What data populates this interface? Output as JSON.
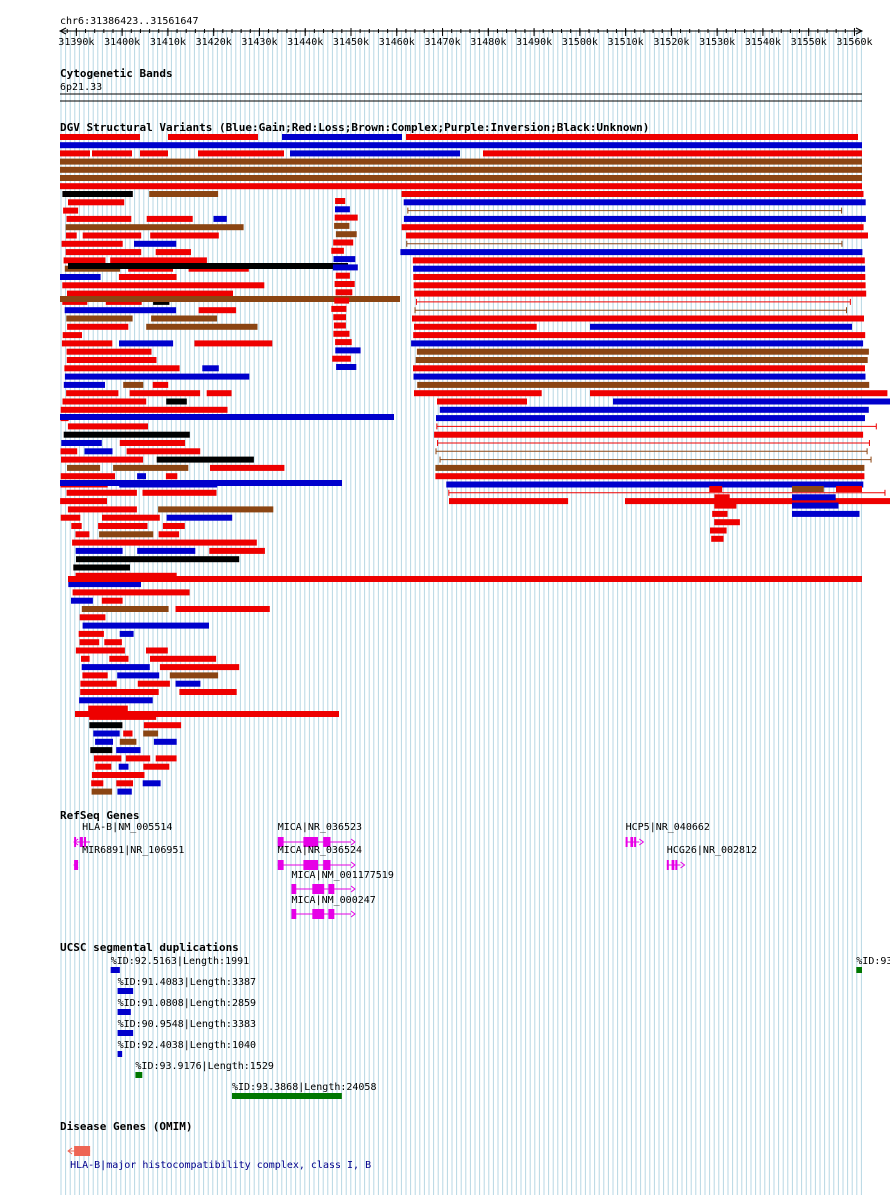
{
  "region": {
    "label": "chr6:31386423..31561647",
    "start": 31386423,
    "end": 31561647
  },
  "ruler": {
    "ticks_k": [
      31390,
      31400,
      31410,
      31420,
      31430,
      31440,
      31450,
      31460,
      31470,
      31480,
      31490,
      31500,
      31510,
      31520,
      31530,
      31540,
      31550,
      31560
    ],
    "suffix": "k"
  },
  "cyto": {
    "title": "Cytogenetic Bands",
    "band": "6p21.33"
  },
  "dgv": {
    "title": "DGV Structural Variants (Blue:Gain;Red:Loss;Brown:Complex;Purple:Inversion;Black:Unknown)"
  },
  "colors": {
    "gain": "#0000cc",
    "loss": "#ee0000",
    "complex": "#8b4513",
    "unknown": "#000000",
    "gene": "#e600e6",
    "segdup_blue": "#0000cc",
    "segdup_green": "#007700",
    "omim": "#ee6655",
    "grid": "#b7d7e4"
  },
  "refseq": {
    "title": "RefSeq Genes",
    "genes": [
      {
        "label": "HLA-B|NM_005514",
        "start": 31389500,
        "end": 31393000,
        "strand": "-"
      },
      {
        "label": "MIR6891|NR_106951",
        "start": 31389500,
        "end": 31390200,
        "strand": "-"
      },
      {
        "label": "MICA|NR_036523",
        "start": 31434000,
        "end": 31450000,
        "strand": "+"
      },
      {
        "label": "MICA|NR_036524",
        "start": 31434000,
        "end": 31450000,
        "strand": "+"
      },
      {
        "label": "MICA|NM_001177519",
        "start": 31437000,
        "end": 31450000,
        "strand": "+"
      },
      {
        "label": "MICA|NM_000247",
        "start": 31437000,
        "end": 31450000,
        "strand": "+"
      },
      {
        "label": "HCP5|NR_040662",
        "start": 31510000,
        "end": 31513000,
        "strand": "+"
      },
      {
        "label": "HCG26|NR_002812",
        "start": 31519000,
        "end": 31522000,
        "strand": "+"
      }
    ]
  },
  "segdups": {
    "title": "UCSC segmental duplications",
    "items": [
      {
        "label": "%ID:92.5163|Length:1991",
        "start": 31397500,
        "end": 31399500,
        "color": "blue"
      },
      {
        "label": "%ID:91.4083|Length:3387",
        "start": 31399000,
        "end": 31402400,
        "color": "blue"
      },
      {
        "label": "%ID:91.0808|Length:2859",
        "start": 31399000,
        "end": 31401900,
        "color": "blue"
      },
      {
        "label": "%ID:90.9548|Length:3383",
        "start": 31399000,
        "end": 31402400,
        "color": "blue"
      },
      {
        "label": "%ID:92.4038|Length:1040",
        "start": 31399000,
        "end": 31400000,
        "color": "blue"
      },
      {
        "label": "%ID:93.9176|Length:1529",
        "start": 31402900,
        "end": 31404400,
        "color": "green"
      },
      {
        "label": "%ID:93.3868|Length:24058",
        "start": 31424000,
        "end": 31448000,
        "color": "green"
      },
      {
        "label": "%ID:93.",
        "start": 31560400,
        "end": 31561647,
        "color": "green"
      }
    ]
  },
  "omim": {
    "title": "Disease Genes (OMIM)",
    "items": [
      {
        "label": "HLA-B|major histocompatibility complex, class I, B",
        "start": 31389500,
        "end": 31393000
      }
    ]
  }
}
